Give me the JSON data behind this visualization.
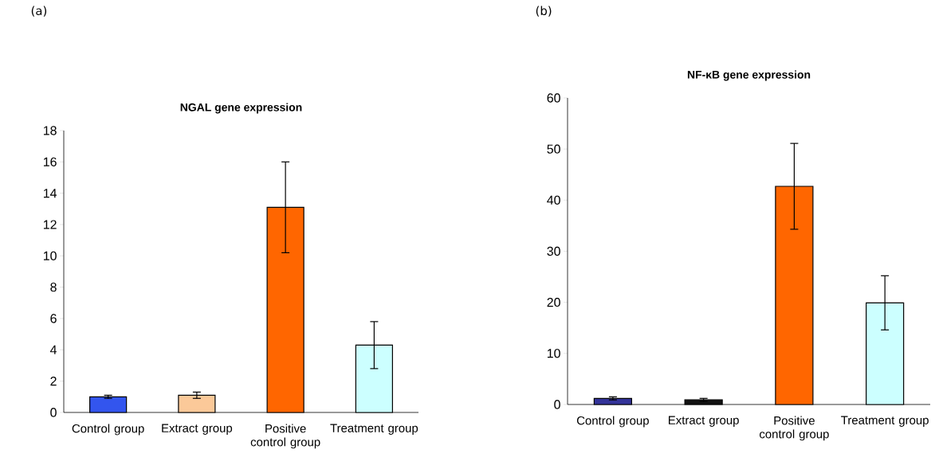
{
  "chart_data": [
    {
      "type": "bar",
      "title": "NGAL gene expression",
      "annotations": [
        "(a)"
      ],
      "categories": [
        "Control group",
        "Extract group",
        "Positive control group",
        "Treatment group"
      ],
      "values": [
        1.0,
        1.1,
        13.1,
        4.3
      ],
      "errors": [
        0.1,
        0.2,
        2.9,
        1.5
      ],
      "colors": [
        "#3355ee",
        "#fbc999",
        "#ff6600",
        "#ccffff"
      ],
      "ylim": [
        0,
        18
      ],
      "yticks": [
        0,
        2,
        4,
        6,
        8,
        10,
        12,
        14,
        16,
        18
      ]
    },
    {
      "type": "bar",
      "title": "NF-κB gene expression",
      "annotations": [
        "(b)"
      ],
      "categories": [
        "Control group",
        "Extract group",
        "Positive control group",
        "Treatment group"
      ],
      "values": [
        1.2,
        0.9,
        42.7,
        19.9
      ],
      "errors": [
        0.3,
        0.3,
        8.4,
        5.3
      ],
      "colors": [
        "#333399",
        "#111111",
        "#ff6600",
        "#ccffff"
      ],
      "ylim": [
        0,
        60
      ],
      "yticks": [
        0,
        10,
        20,
        30,
        40,
        50,
        60
      ]
    }
  ]
}
